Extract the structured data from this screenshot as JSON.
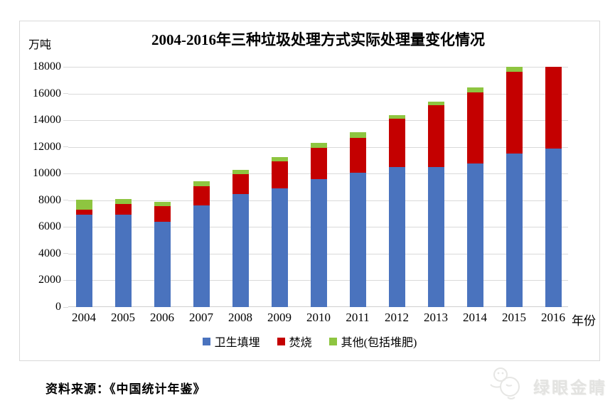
{
  "chart_data": {
    "type": "bar",
    "stacked": true,
    "title": "2004-2016年三种垃圾处理方式实际处理量变化情况",
    "y_unit_label": "万吨",
    "x_axis_label": "年份",
    "categories": [
      "2004",
      "2005",
      "2006",
      "2007",
      "2008",
      "2009",
      "2010",
      "2011",
      "2012",
      "2013",
      "2014",
      "2015",
      "2016"
    ],
    "series": [
      {
        "name": "卫生填埋",
        "color": "#4A73BE",
        "values": [
          6950,
          6900,
          6400,
          7600,
          8450,
          8900,
          9600,
          10050,
          10500,
          10500,
          10750,
          11500,
          11850
        ]
      },
      {
        "name": "焚烧",
        "color": "#C40000",
        "values": [
          350,
          800,
          1150,
          1450,
          1500,
          2000,
          2350,
          2600,
          3600,
          4650,
          5350,
          6150,
          6250
        ]
      },
      {
        "name": "其他(包括堆肥)",
        "color": "#8EC540",
        "values": [
          750,
          400,
          350,
          400,
          350,
          350,
          350,
          450,
          300,
          250,
          350,
          350,
          0
        ]
      }
    ],
    "ylim": [
      0,
      18000
    ],
    "ytick_interval": 2000,
    "grid": true,
    "legend_position": "bottom",
    "gridline_color": "#d9d9d9"
  },
  "footer": {
    "source_text": "资料来源：《中国统计年鉴》"
  },
  "watermark": {
    "text": "绿眼金睛"
  }
}
